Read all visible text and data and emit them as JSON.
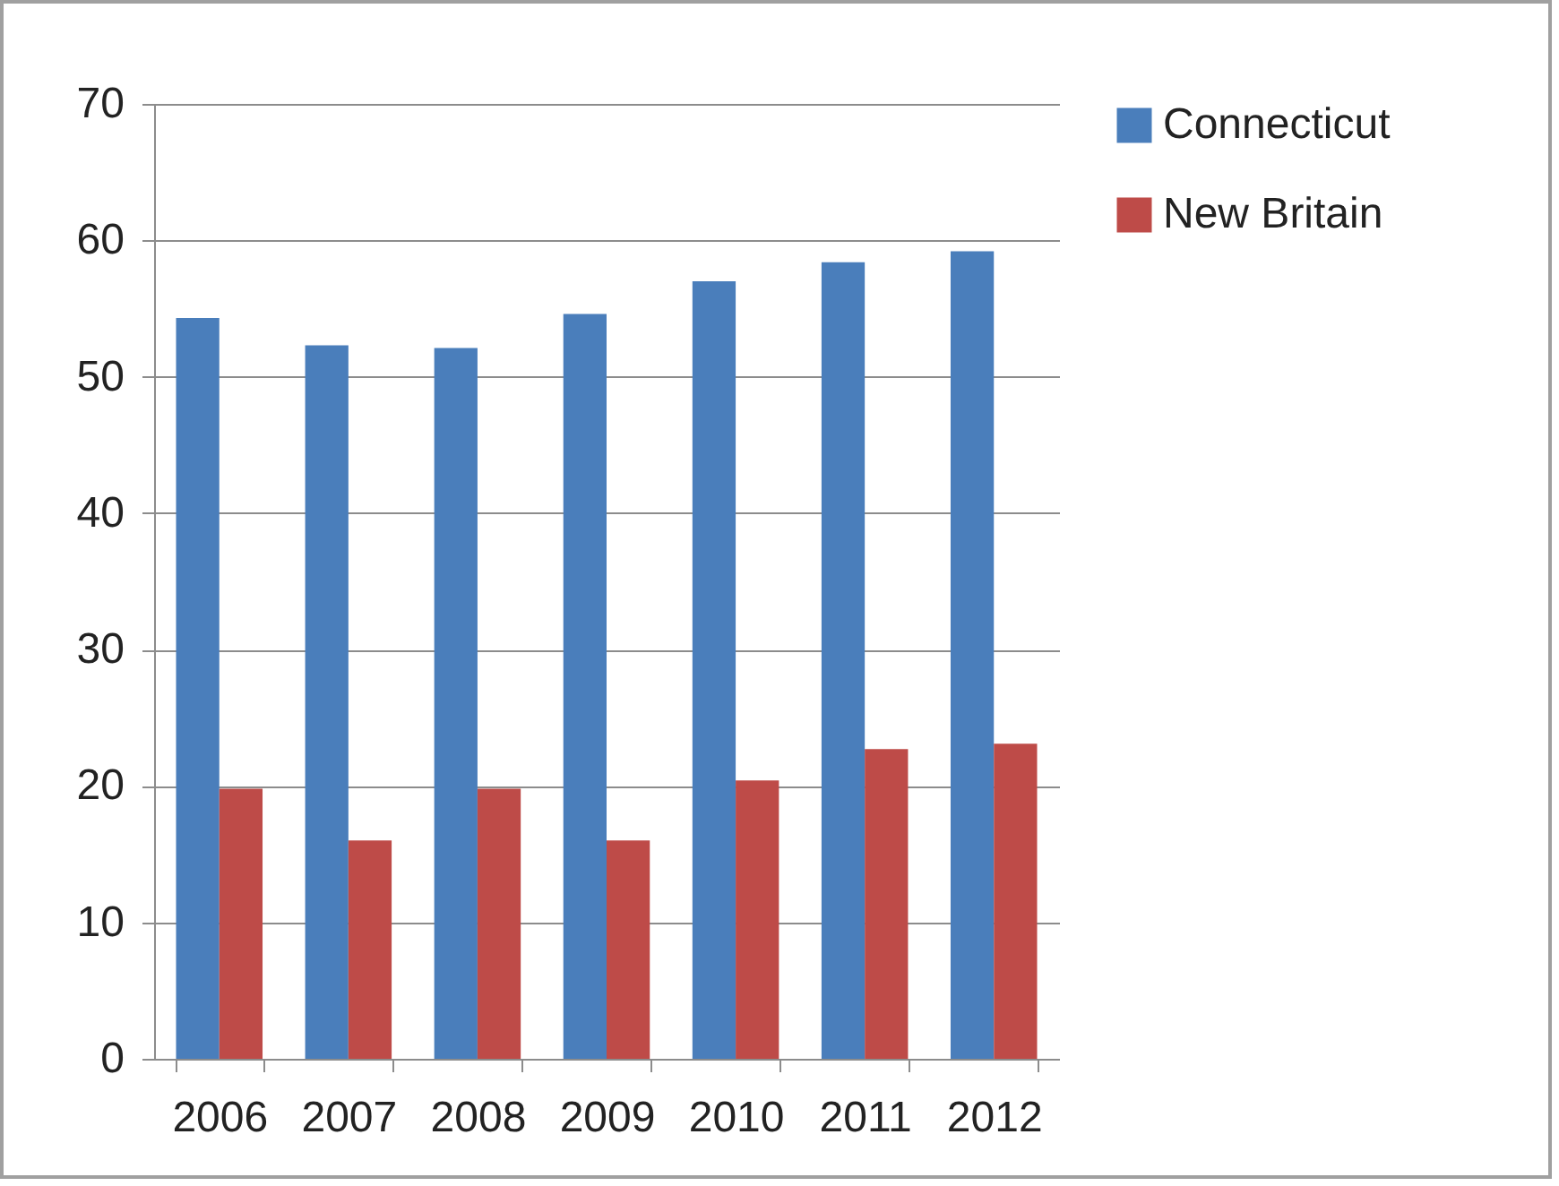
{
  "chart_data": {
    "type": "bar",
    "categories": [
      "2006",
      "2007",
      "2008",
      "2009",
      "2010",
      "2011",
      "2012"
    ],
    "series": [
      {
        "name": "Connecticut",
        "color": "#4a7ebb",
        "values": [
          54.3,
          52.3,
          52.1,
          54.6,
          57.0,
          58.4,
          59.2
        ]
      },
      {
        "name": "New Britain",
        "color": "#be4b48",
        "values": [
          19.8,
          16.0,
          19.8,
          16.0,
          20.4,
          22.7,
          23.1
        ]
      }
    ],
    "ylim": [
      0,
      70
    ],
    "yticks": [
      0,
      10,
      20,
      30,
      40,
      50,
      60,
      70
    ],
    "grid": "y",
    "legend": "right"
  }
}
